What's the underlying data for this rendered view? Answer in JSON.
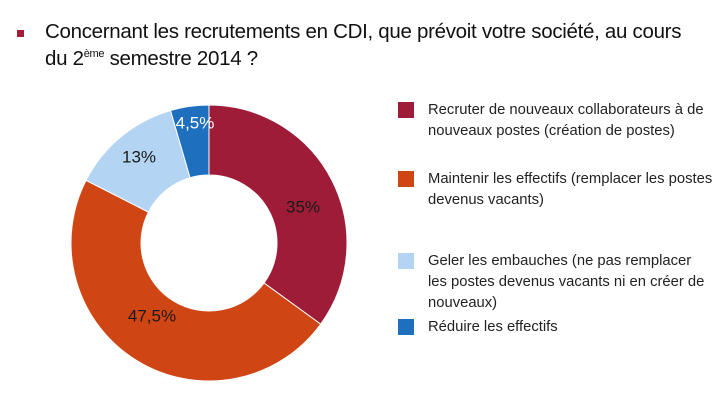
{
  "title": {
    "part1": "Concernant les recrutements en CDI, que prévoit votre société, au cours du 2",
    "sup": "ème",
    "part2": " semestre 2014  ?"
  },
  "chart_data": {
    "type": "pie",
    "variant": "donut",
    "title": "Concernant les recrutements en CDI, que prévoit votre société, au cours du 2ème semestre 2014 ?",
    "categories": [
      "Recruter de nouveaux collaborateurs à de nouveaux postes (création de postes)",
      "Maintenir les effectifs (remplacer les postes devenus vacants)",
      "Geler les embauches (ne pas remplacer les postes devenus vacants ni en créer de nouveaux)",
      "Réduire les effectifs"
    ],
    "values": [
      35,
      47.5,
      13,
      4.5
    ],
    "data_labels": [
      "35%",
      "47,5%",
      "13%",
      "4,5%"
    ],
    "colors": [
      "#9e1c37",
      "#d04514",
      "#b3d4f2",
      "#1f6fbf"
    ],
    "label_colors": [
      "#1a1a1a",
      "#1a1a1a",
      "#1a1a1a",
      "#ffffff"
    ],
    "start_angle": "12 o'clock",
    "direction": "clockwise",
    "legend_position": "right"
  },
  "legend": [
    {
      "label": "Recruter de nouveaux collaborateurs à de nouveaux postes (création de postes)"
    },
    {
      "label": "Maintenir les effectifs (remplacer les postes devenus vacants)"
    },
    {
      "label": "Geler les embauches (ne pas remplacer les postes devenus vacants ni en créer de nouveaux)"
    },
    {
      "label": "Réduire les effectifs"
    }
  ]
}
